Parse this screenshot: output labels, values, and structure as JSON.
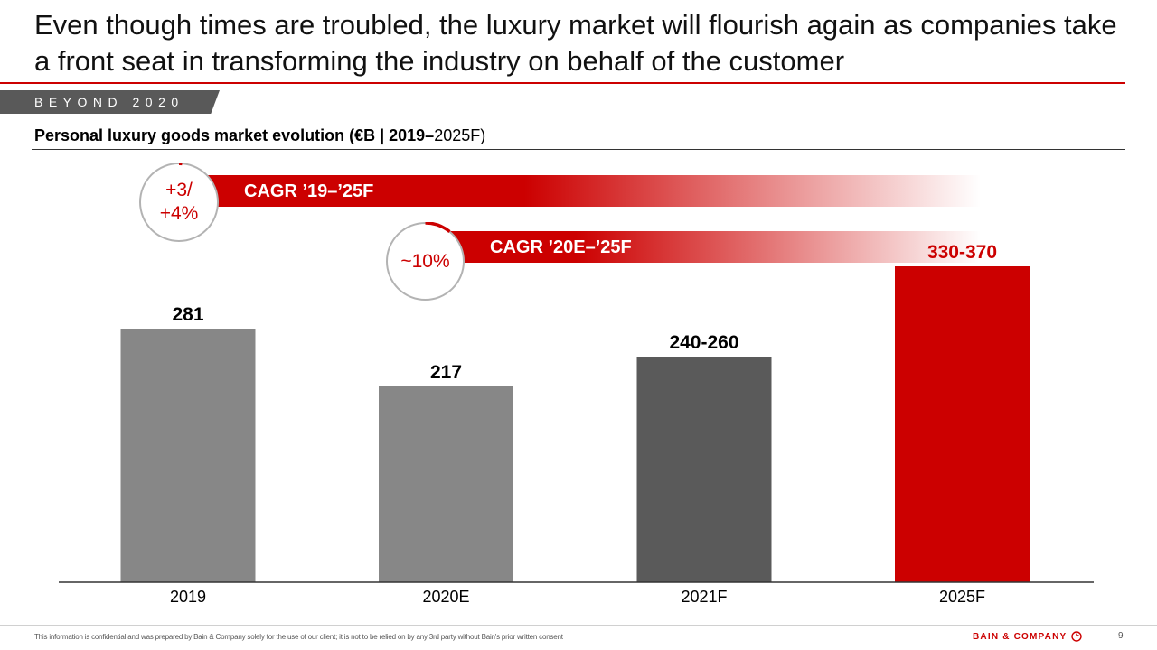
{
  "headline": "Even though times are troubled, the luxury market will flourish again as companies take a front seat in transforming the industry on behalf of the customer",
  "section_tag": "BEYOND 2020",
  "subtitle": {
    "bold_part": "Personal luxury goods market evolution (€B | 2019–",
    "regular_part": "2025F)"
  },
  "cagr": [
    {
      "label": "CAGR ’19–’25F",
      "value_line1": "+3/",
      "value_line2": "+4%"
    },
    {
      "label": "CAGR ’20E–’25F",
      "value": "~10%"
    }
  ],
  "chart_data": {
    "type": "bar",
    "title": "Personal luxury goods market evolution (€B | 2019–2025F)",
    "categories": [
      "2019",
      "2020E",
      "2021F",
      "2025F"
    ],
    "values": [
      281,
      217,
      250,
      350
    ],
    "value_labels": [
      "281",
      "217",
      "240-260",
      "330-370"
    ],
    "colors": [
      "#878787",
      "#878787",
      "#5a5a5a",
      "#cc0000"
    ],
    "label_colors": [
      "#000000",
      "#000000",
      "#000000",
      "#cc0000"
    ],
    "ylim": [
      0,
      400
    ],
    "grid": false
  },
  "colors": {
    "accent": "#cc0000",
    "bar_grey": "#878787",
    "bar_dark": "#5a5a5a"
  },
  "footer": {
    "disclaimer": "This information is confidential and was prepared by Bain & Company solely for the use of our client; it is not to be relied on by any 3rd party without Bain's prior written consent",
    "logo_text": "BAIN & COMPANY",
    "page_number": "9"
  }
}
